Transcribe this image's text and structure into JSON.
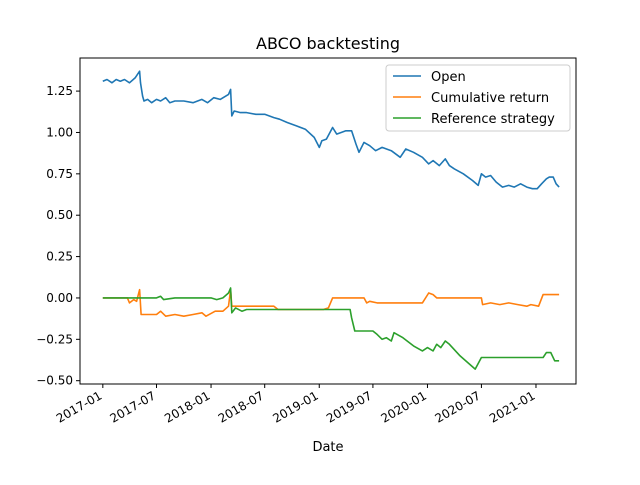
{
  "chart_data": {
    "type": "line",
    "title": "ABCO backtesting",
    "xlabel": "Date",
    "ylabel": "",
    "xlim": [
      "2016-10-16",
      "2021-05-16"
    ],
    "ylim": [
      -0.52,
      1.45
    ],
    "grid": false,
    "legend_position": "top-right",
    "x_ticks": [
      "2017-01",
      "2017-07",
      "2018-01",
      "2018-07",
      "2019-01",
      "2019-07",
      "2020-01",
      "2020-07",
      "2021-01"
    ],
    "y_ticks": [
      "1.25",
      "1.00",
      "0.75",
      "0.50",
      "0.25",
      "0.00",
      "−0.25",
      "−0.50"
    ],
    "y_tick_values": [
      1.25,
      1.0,
      0.75,
      0.5,
      0.25,
      0.0,
      -0.25,
      -0.5
    ],
    "series": [
      {
        "name": "Open",
        "color": "#1f77b4",
        "points": [
          [
            "2017-01-01",
            1.31
          ],
          [
            "2017-01-15",
            1.32
          ],
          [
            "2017-02-01",
            1.3
          ],
          [
            "2017-02-15",
            1.32
          ],
          [
            "2017-03-01",
            1.31
          ],
          [
            "2017-03-15",
            1.32
          ],
          [
            "2017-04-01",
            1.3
          ],
          [
            "2017-04-20",
            1.33
          ],
          [
            "2017-05-05",
            1.37
          ],
          [
            "2017-05-08",
            1.3
          ],
          [
            "2017-05-15",
            1.22
          ],
          [
            "2017-05-20",
            1.19
          ],
          [
            "2017-06-01",
            1.2
          ],
          [
            "2017-06-15",
            1.18
          ],
          [
            "2017-07-01",
            1.2
          ],
          [
            "2017-07-15",
            1.19
          ],
          [
            "2017-08-01",
            1.21
          ],
          [
            "2017-08-15",
            1.18
          ],
          [
            "2017-09-01",
            1.19
          ],
          [
            "2017-10-01",
            1.19
          ],
          [
            "2017-11-01",
            1.18
          ],
          [
            "2017-12-01",
            1.2
          ],
          [
            "2017-12-20",
            1.18
          ],
          [
            "2018-01-10",
            1.21
          ],
          [
            "2018-02-01",
            1.2
          ],
          [
            "2018-03-01",
            1.23
          ],
          [
            "2018-03-08",
            1.26
          ],
          [
            "2018-03-12",
            1.1
          ],
          [
            "2018-03-20",
            1.13
          ],
          [
            "2018-04-10",
            1.12
          ],
          [
            "2018-05-01",
            1.12
          ],
          [
            "2018-06-01",
            1.11
          ],
          [
            "2018-07-01",
            1.11
          ],
          [
            "2018-08-01",
            1.09
          ],
          [
            "2018-08-20",
            1.08
          ],
          [
            "2018-09-15",
            1.06
          ],
          [
            "2018-10-15",
            1.04
          ],
          [
            "2018-11-15",
            1.02
          ],
          [
            "2018-12-15",
            0.97
          ],
          [
            "2019-01-01",
            0.91
          ],
          [
            "2019-01-10",
            0.95
          ],
          [
            "2019-01-25",
            0.96
          ],
          [
            "2019-02-15",
            1.03
          ],
          [
            "2019-03-01",
            0.99
          ],
          [
            "2019-04-01",
            1.01
          ],
          [
            "2019-04-20",
            1.01
          ],
          [
            "2019-05-05",
            0.93
          ],
          [
            "2019-05-15",
            0.88
          ],
          [
            "2019-06-01",
            0.94
          ],
          [
            "2019-06-20",
            0.92
          ],
          [
            "2019-07-10",
            0.89
          ],
          [
            "2019-08-01",
            0.91
          ],
          [
            "2019-09-01",
            0.89
          ],
          [
            "2019-10-01",
            0.85
          ],
          [
            "2019-10-20",
            0.9
          ],
          [
            "2019-11-15",
            0.88
          ],
          [
            "2019-12-15",
            0.85
          ],
          [
            "2020-01-05",
            0.81
          ],
          [
            "2020-01-20",
            0.83
          ],
          [
            "2020-02-10",
            0.8
          ],
          [
            "2020-03-01",
            0.84
          ],
          [
            "2020-03-15",
            0.8
          ],
          [
            "2020-04-01",
            0.78
          ],
          [
            "2020-05-01",
            0.75
          ],
          [
            "2020-06-01",
            0.71
          ],
          [
            "2020-06-20",
            0.68
          ],
          [
            "2020-07-01",
            0.75
          ],
          [
            "2020-07-15",
            0.73
          ],
          [
            "2020-08-01",
            0.74
          ],
          [
            "2020-08-20",
            0.7
          ],
          [
            "2020-09-10",
            0.67
          ],
          [
            "2020-10-01",
            0.68
          ],
          [
            "2020-10-20",
            0.67
          ],
          [
            "2020-11-10",
            0.69
          ],
          [
            "2020-12-01",
            0.67
          ],
          [
            "2020-12-20",
            0.66
          ],
          [
            "2021-01-05",
            0.66
          ],
          [
            "2021-01-20",
            0.69
          ],
          [
            "2021-02-05",
            0.72
          ],
          [
            "2021-02-15",
            0.73
          ],
          [
            "2021-02-28",
            0.73
          ],
          [
            "2021-03-10",
            0.69
          ],
          [
            "2021-03-20",
            0.67
          ]
        ]
      },
      {
        "name": "Cumulative return",
        "color": "#ff7f0e",
        "points": [
          [
            "2017-01-01",
            0.0
          ],
          [
            "2017-03-25",
            0.0
          ],
          [
            "2017-04-01",
            -0.03
          ],
          [
            "2017-04-15",
            -0.01
          ],
          [
            "2017-04-25",
            -0.02
          ],
          [
            "2017-05-05",
            0.05
          ],
          [
            "2017-05-10",
            -0.1
          ],
          [
            "2017-06-01",
            -0.1
          ],
          [
            "2017-07-01",
            -0.1
          ],
          [
            "2017-07-15",
            -0.08
          ],
          [
            "2017-08-01",
            -0.11
          ],
          [
            "2017-09-01",
            -0.1
          ],
          [
            "2017-10-01",
            -0.11
          ],
          [
            "2017-11-01",
            -0.1
          ],
          [
            "2017-12-01",
            -0.09
          ],
          [
            "2017-12-15",
            -0.11
          ],
          [
            "2018-01-15",
            -0.08
          ],
          [
            "2018-02-10",
            -0.08
          ],
          [
            "2018-03-01",
            -0.05
          ],
          [
            "2018-03-08",
            0.05
          ],
          [
            "2018-03-12",
            -0.05
          ],
          [
            "2018-04-15",
            -0.05
          ],
          [
            "2018-06-01",
            -0.05
          ],
          [
            "2018-08-01",
            -0.05
          ],
          [
            "2018-08-15",
            -0.07
          ],
          [
            "2018-10-01",
            -0.07
          ],
          [
            "2019-01-15",
            -0.07
          ],
          [
            "2019-02-01",
            -0.06
          ],
          [
            "2019-02-15",
            0.0
          ],
          [
            "2019-03-20",
            0.0
          ],
          [
            "2019-06-01",
            0.0
          ],
          [
            "2019-06-10",
            -0.03
          ],
          [
            "2019-06-20",
            -0.02
          ],
          [
            "2019-07-15",
            -0.03
          ],
          [
            "2019-12-15",
            -0.03
          ],
          [
            "2020-01-05",
            0.03
          ],
          [
            "2020-01-20",
            0.02
          ],
          [
            "2020-02-01",
            0.0
          ],
          [
            "2020-07-01",
            0.0
          ],
          [
            "2020-07-05",
            -0.04
          ],
          [
            "2020-08-01",
            -0.03
          ],
          [
            "2020-09-01",
            -0.04
          ],
          [
            "2020-10-01",
            -0.03
          ],
          [
            "2020-11-01",
            -0.04
          ],
          [
            "2020-12-01",
            -0.05
          ],
          [
            "2020-12-15",
            -0.04
          ],
          [
            "2021-01-10",
            -0.05
          ],
          [
            "2021-01-25",
            0.02
          ],
          [
            "2021-03-20",
            0.02
          ]
        ]
      },
      {
        "name": "Reference strategy",
        "color": "#2ca02c",
        "points": [
          [
            "2017-01-01",
            0.0
          ],
          [
            "2017-07-01",
            0.0
          ],
          [
            "2017-07-15",
            0.01
          ],
          [
            "2017-07-25",
            -0.01
          ],
          [
            "2017-09-01",
            0.0
          ],
          [
            "2018-01-01",
            0.0
          ],
          [
            "2018-01-20",
            -0.01
          ],
          [
            "2018-02-10",
            0.0
          ],
          [
            "2018-03-01",
            0.03
          ],
          [
            "2018-03-08",
            0.06
          ],
          [
            "2018-03-12",
            -0.09
          ],
          [
            "2018-03-25",
            -0.06
          ],
          [
            "2018-04-15",
            -0.08
          ],
          [
            "2018-05-01",
            -0.07
          ],
          [
            "2018-08-01",
            -0.07
          ],
          [
            "2019-01-01",
            -0.07
          ],
          [
            "2019-04-01",
            -0.07
          ],
          [
            "2019-04-15",
            -0.07
          ],
          [
            "2019-04-20",
            -0.12
          ],
          [
            "2019-05-01",
            -0.2
          ],
          [
            "2019-06-01",
            -0.2
          ],
          [
            "2019-07-01",
            -0.2
          ],
          [
            "2019-07-15",
            -0.22
          ],
          [
            "2019-08-01",
            -0.25
          ],
          [
            "2019-08-15",
            -0.24
          ],
          [
            "2019-09-01",
            -0.26
          ],
          [
            "2019-09-10",
            -0.21
          ],
          [
            "2019-10-10",
            -0.24
          ],
          [
            "2019-11-15",
            -0.29
          ],
          [
            "2019-12-15",
            -0.32
          ],
          [
            "2020-01-01",
            -0.3
          ],
          [
            "2020-01-20",
            -0.32
          ],
          [
            "2020-02-01",
            -0.28
          ],
          [
            "2020-02-15",
            -0.3
          ],
          [
            "2020-03-01",
            -0.26
          ],
          [
            "2020-03-15",
            -0.28
          ],
          [
            "2020-03-25",
            -0.3
          ],
          [
            "2020-04-20",
            -0.35
          ],
          [
            "2020-06-10",
            -0.43
          ],
          [
            "2020-07-01",
            -0.36
          ],
          [
            "2021-01-25",
            -0.36
          ],
          [
            "2021-02-05",
            -0.33
          ],
          [
            "2021-02-20",
            -0.33
          ],
          [
            "2021-03-05",
            -0.38
          ],
          [
            "2021-03-20",
            -0.38
          ]
        ]
      }
    ]
  }
}
